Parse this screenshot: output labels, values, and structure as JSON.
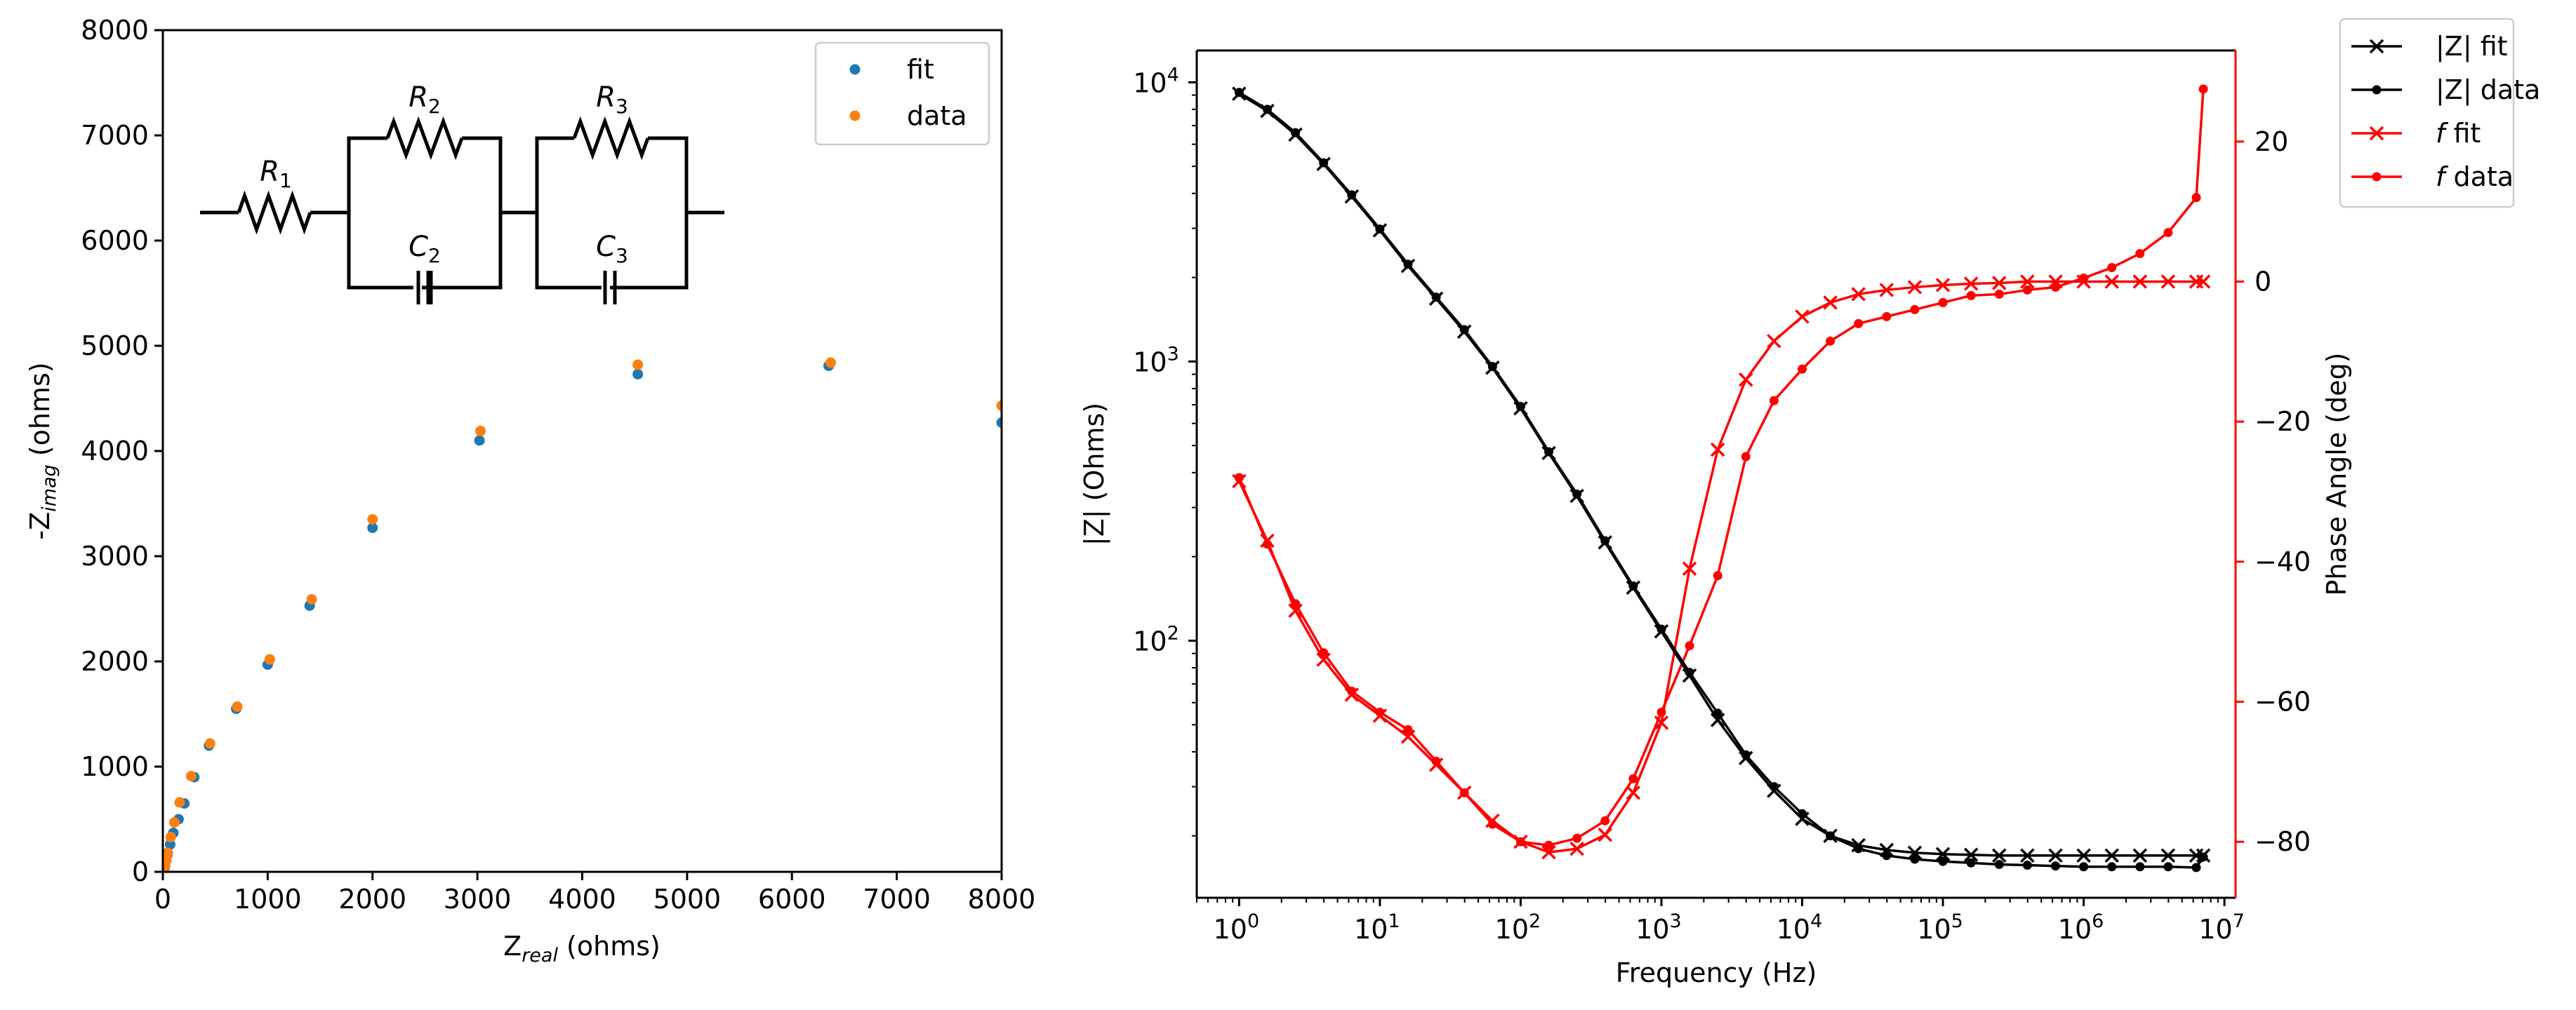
{
  "chart_data": [
    {
      "type": "scatter",
      "xlabel_main": "Z",
      "xlabel_sub": "real",
      "xlabel_unit": " (ohms)",
      "ylabel_main": "-Z",
      "ylabel_sub": "imag",
      "ylabel_unit": " (ohms)",
      "xlim": [
        0,
        8000
      ],
      "ylim": [
        0,
        8000
      ],
      "xticks": [
        "0",
        "1000",
        "2000",
        "3000",
        "4000",
        "5000",
        "6000",
        "7000",
        "8000"
      ],
      "yticks": [
        "0",
        "1000",
        "2000",
        "3000",
        "4000",
        "5000",
        "6000",
        "7000",
        "8000"
      ],
      "legend": "top-right",
      "series": [
        {
          "name": "fit",
          "color": "#1f77b4",
          "points": [
            [
              10,
              10
            ],
            [
              15,
              30
            ],
            [
              22,
              60
            ],
            [
              32,
              110
            ],
            [
              47,
              170
            ],
            [
              70,
              260
            ],
            [
              100,
              370
            ],
            [
              150,
              500
            ],
            [
              205,
              650
            ],
            [
              300,
              900
            ],
            [
              440,
              1200
            ],
            [
              700,
              1550
            ],
            [
              1000,
              1970
            ],
            [
              1400,
              2530
            ],
            [
              2000,
              3270
            ],
            [
              3020,
              4100
            ],
            [
              4530,
              4730
            ],
            [
              6350,
              4810
            ],
            [
              8000,
              4270
            ]
          ]
        },
        {
          "name": "data",
          "color": "#ff7f0e",
          "points": [
            [
              10,
              10
            ],
            [
              15,
              30
            ],
            [
              22,
              60
            ],
            [
              32,
              110
            ],
            [
              47,
              180
            ],
            [
              75,
              330
            ],
            [
              110,
              470
            ],
            [
              160,
              660
            ],
            [
              270,
              910
            ],
            [
              450,
              1220
            ],
            [
              710,
              1570
            ],
            [
              1020,
              2020
            ],
            [
              1420,
              2590
            ],
            [
              2000,
              3350
            ],
            [
              3030,
              4190
            ],
            [
              4530,
              4820
            ],
            [
              6370,
              4840
            ],
            [
              8000,
              4430
            ]
          ]
        }
      ],
      "circuit_labels": [
        {
          "main": "R",
          "sub": "1"
        },
        {
          "main": "R",
          "sub": "2"
        },
        {
          "main": "R",
          "sub": "3"
        },
        {
          "main": "C",
          "sub": "2"
        },
        {
          "main": "C",
          "sub": "3"
        }
      ]
    },
    {
      "type": "line",
      "xlabel": "Frequency (Hz)",
      "ylabel_left": "|Z| (Ohms)",
      "ylabel_right": "Phase Angle (deg)",
      "xscale": "log",
      "yscale_left": "log",
      "xlim": [
        0.5,
        12000000
      ],
      "ylim_left": [
        12,
        13000
      ],
      "ylim_right": [
        -88,
        33
      ],
      "xticks": [
        {
          "base": "10",
          "exp": "0"
        },
        {
          "base": "10",
          "exp": "1"
        },
        {
          "base": "10",
          "exp": "2"
        },
        {
          "base": "10",
          "exp": "3"
        },
        {
          "base": "10",
          "exp": "4"
        },
        {
          "base": "10",
          "exp": "5"
        },
        {
          "base": "10",
          "exp": "6"
        },
        {
          "base": "10",
          "exp": "7"
        }
      ],
      "yticks_left": [
        {
          "base": "10",
          "exp": "2"
        },
        {
          "base": "10",
          "exp": "3"
        },
        {
          "base": "10",
          "exp": "4"
        }
      ],
      "yticks_right": [
        "20",
        "0",
        "−20",
        "−40",
        "−60",
        "−80"
      ],
      "right_axis_color": "#ff0000",
      "legend": "outside-top-right",
      "freq_log10": [
        0,
        0.2,
        0.4,
        0.6,
        0.8,
        1.0,
        1.2,
        1.4,
        1.6,
        1.8,
        2.0,
        2.2,
        2.4,
        2.6,
        2.8,
        3.0,
        3.2,
        3.4,
        3.6,
        3.8,
        4.0,
        4.2,
        4.4,
        4.6,
        4.8,
        5.0,
        5.2,
        5.4,
        5.6,
        5.8,
        6.0,
        6.2,
        6.4,
        6.6,
        6.8,
        6.85
      ],
      "series": [
        {
          "name": "|Z| fit",
          "color": "#000000",
          "marker": "x",
          "axis": "left",
          "values": [
            9100,
            7900,
            6500,
            5100,
            3900,
            2950,
            2200,
            1680,
            1280,
            950,
            680,
            470,
            330,
            225,
            155,
            108,
            75,
            52,
            38,
            29,
            23,
            20,
            18.5,
            17.8,
            17.4,
            17.2,
            17.1,
            17,
            17,
            17,
            17,
            17,
            17,
            17,
            17,
            17
          ]
        },
        {
          "name": "|Z| data",
          "color": "#000000",
          "marker": "dot",
          "axis": "left",
          "values": [
            9200,
            8000,
            6600,
            5150,
            3950,
            2980,
            2230,
            1700,
            1300,
            960,
            690,
            475,
            335,
            228,
            157,
            110,
            77,
            55,
            39,
            30,
            24,
            20,
            18,
            17,
            16.5,
            16.2,
            16,
            15.8,
            15.7,
            15.6,
            15.5,
            15.5,
            15.5,
            15.5,
            15.4,
            16.8
          ]
        },
        {
          "name": "f fit",
          "name_italic": "f",
          "name_rest": " fit",
          "color": "#ff0000",
          "marker": "x",
          "axis": "right",
          "values": [
            -28.5,
            -37,
            -47,
            -54,
            -59,
            -62,
            -65,
            -69,
            -73,
            -77,
            -80,
            -81.5,
            -81,
            -79,
            -73,
            -63,
            -41,
            -24,
            -14,
            -8.5,
            -5,
            -3,
            -1.8,
            -1.2,
            -0.8,
            -0.5,
            -0.3,
            -0.2,
            0,
            0,
            0,
            0,
            0,
            0,
            0,
            0
          ]
        },
        {
          "name": "f data",
          "name_italic": "f",
          "name_rest": " data",
          "color": "#ff0000",
          "marker": "dot",
          "axis": "right",
          "values": [
            -28,
            -37.5,
            -46,
            -53,
            -58.5,
            -61.5,
            -64,
            -68.5,
            -73,
            -77.5,
            -80,
            -80.5,
            -79.5,
            -77,
            -71,
            -61.5,
            -52,
            -42,
            -25,
            -17,
            -12.5,
            -8.5,
            -6,
            -5,
            -4,
            -3,
            -2,
            -1.8,
            -1.2,
            -0.8,
            0.5,
            2,
            4,
            7,
            12,
            27.5
          ]
        }
      ]
    }
  ]
}
